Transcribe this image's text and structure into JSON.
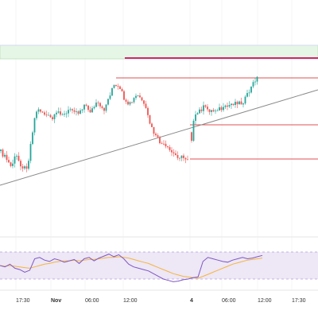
{
  "chart_data": {
    "type": "candlestick",
    "title": "",
    "x_axis_ticks": [
      "17:30",
      "Nov",
      "06:00",
      "12:00",
      "4",
      "06:00",
      "12:00",
      "17:30"
    ],
    "colors": {
      "up": "#26a69a",
      "down": "#ef5350",
      "zone_fill": "#e6f6e6",
      "zone_border": "#b9ddb9",
      "resistance_line": "#d6246e",
      "level_line": "#e05050",
      "trendline": "#8a8a8a",
      "rsi_line": "#7e57c2",
      "rsi_ma": "#f5b53f",
      "rsi_band": "#ede7f6",
      "grid": "#eeeeee"
    },
    "annotations": [
      {
        "kind": "zone",
        "note": "green supply zone across top"
      },
      {
        "kind": "horizontal_line",
        "color": "resistance_line"
      },
      {
        "kind": "trendline",
        "color": "trendline"
      },
      {
        "kind": "horizontal_segments",
        "count": 3,
        "color": "level_line"
      }
    ],
    "rsi": {
      "band_levels": [
        70,
        30
      ],
      "values": [
        50,
        48,
        52,
        46,
        44,
        40,
        43,
        60,
        62,
        58,
        56,
        60,
        58,
        55,
        57,
        59,
        53,
        60,
        62,
        57,
        61,
        64,
        67,
        63,
        66,
        60,
        52,
        48,
        46,
        44,
        42,
        38,
        34,
        30,
        28,
        26,
        27,
        29,
        30,
        32,
        33,
        56,
        62,
        60,
        58,
        56,
        55,
        58,
        60,
        62,
        60,
        61,
        63,
        65
      ],
      "ma": [
        50,
        49,
        50,
        49,
        48,
        47,
        46,
        48,
        50,
        52,
        53,
        55,
        56,
        57,
        57,
        58,
        57,
        58,
        59,
        59,
        60,
        61,
        62,
        62,
        63,
        62,
        61,
        59,
        57,
        55,
        53,
        50,
        47,
        44,
        41,
        38,
        36,
        34,
        33,
        32,
        31,
        34,
        37,
        40,
        43,
        46,
        49,
        52,
        54,
        56,
        58,
        59,
        60,
        61
      ]
    }
  }
}
